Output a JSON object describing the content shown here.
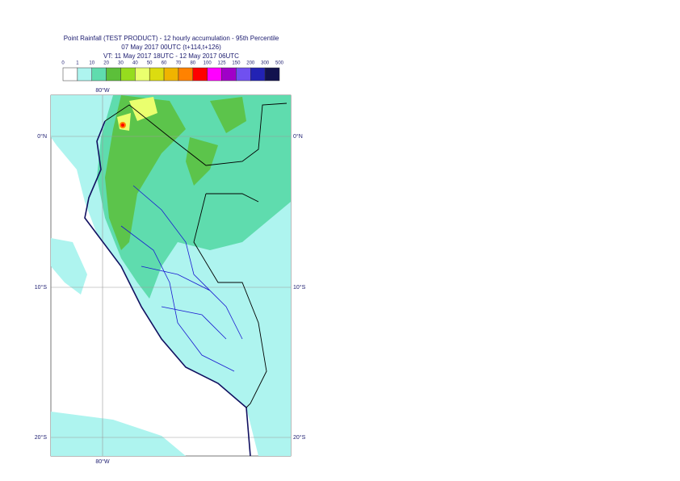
{
  "header": {
    "title": "Point Rainfall (TEST PRODUCT) - 12 hourly accumulation - 95th Percentile",
    "line2": "07 May 2017 00UTC (t+114,t+126)",
    "line3": "VT: 11 May 2017 18UTC - 12 May 2017 06UTC"
  },
  "legend": {
    "labels": [
      0,
      1,
      10,
      20,
      30,
      40,
      50,
      60,
      70,
      80,
      100,
      125,
      150,
      200,
      300,
      500
    ],
    "colors": [
      "#ffffff",
      "#aef4ef",
      "#5fdcae",
      "#5cbf3a",
      "#96dc1e",
      "#eaff6e",
      "#dcdc10",
      "#f0b400",
      "#ff8200",
      "#ff0000",
      "#ff00ff",
      "#a000c8",
      "#7050f0",
      "#2222b4",
      "#12124e"
    ]
  },
  "map": {
    "lon_label": "80°W",
    "lat_labels": [
      "0°N",
      "10°S",
      "20°S"
    ]
  }
}
